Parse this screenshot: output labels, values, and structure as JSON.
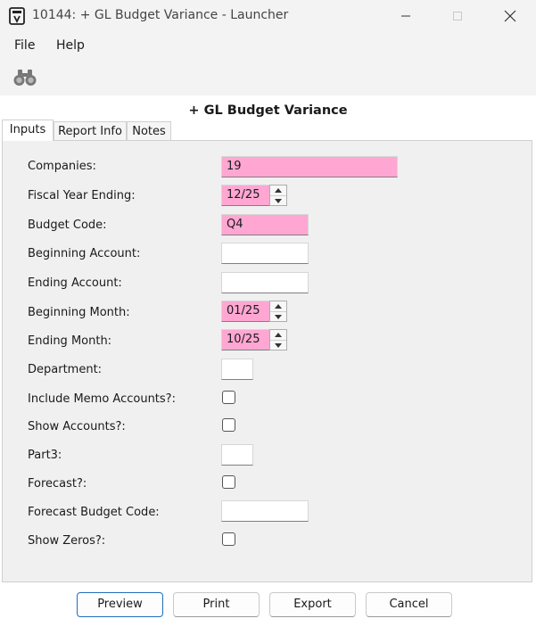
{
  "window": {
    "title": "10144: + GL Budget Variance - Launcher",
    "controls": [
      "minimize",
      "maximize",
      "close"
    ]
  },
  "menu": {
    "file": "File",
    "help": "Help"
  },
  "toolbar": {
    "icon": "binoculars-icon"
  },
  "report": {
    "title": "+ GL Budget Variance"
  },
  "tabs": [
    {
      "label": "Inputs",
      "active": true
    },
    {
      "label": "Report Info",
      "active": false
    },
    {
      "label": "Notes",
      "active": false
    }
  ],
  "form": {
    "companies": {
      "label": "Companies:",
      "value": "19"
    },
    "fiscal_year_ending": {
      "label": "Fiscal Year Ending:",
      "value": "12/25"
    },
    "budget_code": {
      "label": "Budget Code:",
      "value": "Q4"
    },
    "beginning_account": {
      "label": "Beginning Account:",
      "value": ""
    },
    "ending_account": {
      "label": "Ending Account:",
      "value": ""
    },
    "beginning_month": {
      "label": "Beginning Month:",
      "value": "01/25"
    },
    "ending_month": {
      "label": "Ending Month:",
      "value": "10/25"
    },
    "department": {
      "label": "Department:",
      "value": ""
    },
    "include_memo_accounts": {
      "label": "Include Memo Accounts?:",
      "checked": false
    },
    "show_accounts": {
      "label": "Show Accounts?:",
      "checked": false
    },
    "part3": {
      "label": "Part3:",
      "value": ""
    },
    "forecast": {
      "label": "Forecast?:",
      "checked": false
    },
    "forecast_budget_code": {
      "label": "Forecast Budget Code:",
      "value": ""
    },
    "show_zeros": {
      "label": "Show Zeros?:",
      "checked": false
    }
  },
  "buttons": {
    "preview": "Preview",
    "print": "Print",
    "export": "Export",
    "cancel": "Cancel"
  },
  "colors": {
    "required_field": "#ffa7d2",
    "accent": "#1e6fc0"
  }
}
